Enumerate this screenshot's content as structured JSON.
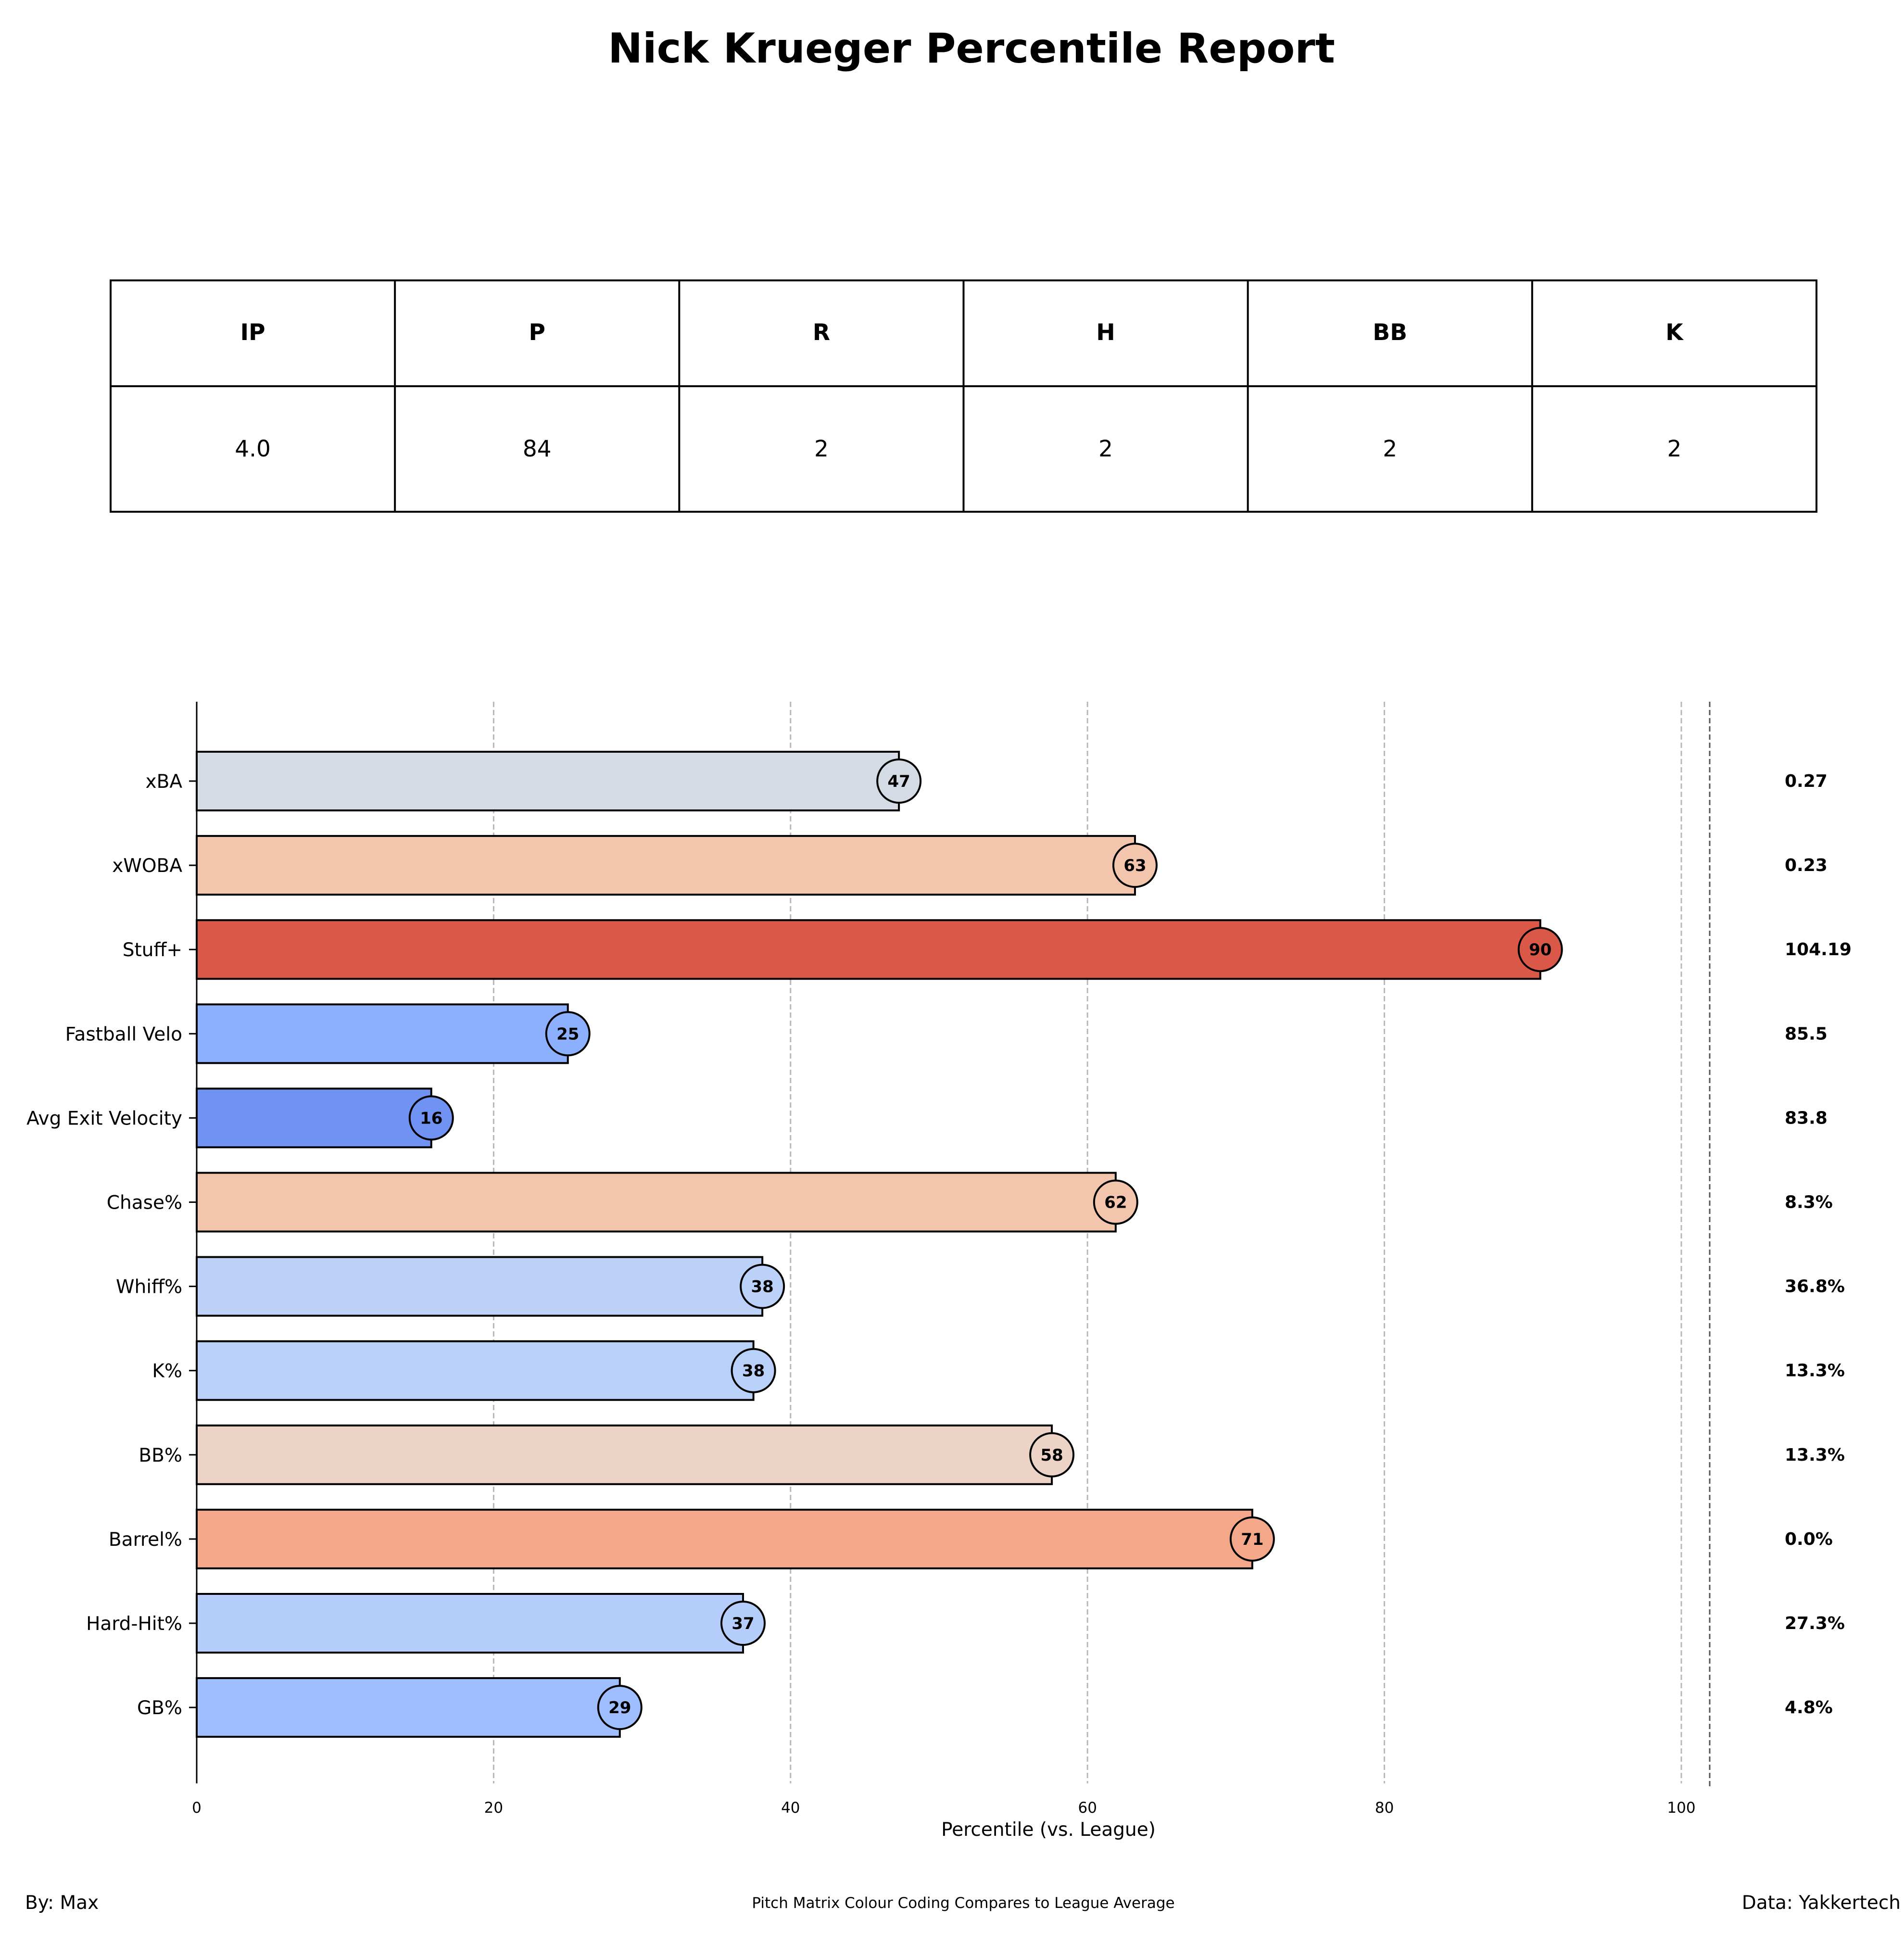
{
  "title": "Nick Krueger Percentile Report",
  "stats_table": {
    "headers": [
      "IP",
      "P",
      "R",
      "H",
      "BB",
      "K"
    ],
    "values": [
      "4.0",
      "84",
      "2",
      "2",
      "2",
      "2"
    ]
  },
  "chart_data": {
    "type": "bar",
    "orientation": "horizontal",
    "categories": [
      "xBA",
      "xWOBA",
      "Stuff+",
      "Fastball Velo",
      "Avg Exit Velocity",
      "Chase%",
      "Whiff%",
      "K%",
      "BB%",
      "Barrel%",
      "Hard-Hit%",
      "GB%"
    ],
    "values": [
      47.3,
      63.2,
      90.5,
      25.0,
      15.8,
      61.9,
      38.1,
      37.5,
      57.6,
      71.1,
      36.8,
      28.5
    ],
    "bubble_labels": [
      "47",
      "63",
      "90",
      "25",
      "16",
      "62",
      "38",
      "38",
      "58",
      "71",
      "37",
      "29"
    ],
    "stat_values": [
      "0.27",
      "0.23",
      "104.19",
      "85.5",
      "83.8",
      "8.3%",
      "36.8%",
      "13.3%",
      "13.3%",
      "0.0%",
      "27.3%",
      "4.8%"
    ],
    "colors": [
      "#d5dbe5",
      "#f4c5ad",
      "#d95847",
      "#8caffe",
      "#7092f3",
      "#f4c5ad",
      "#bbd1f8",
      "#b9d0f9",
      "#ecd3c5",
      "#f5a889",
      "#b5cdfa",
      "#9ebeff"
    ],
    "xlabel": "Percentile (vs. League)",
    "xticks": [
      0,
      20,
      40,
      60,
      80,
      100
    ],
    "xlim": [
      0,
      102
    ],
    "grid": "vertical dashed"
  },
  "footer": {
    "left": "By: Max",
    "center": "Pitch Matrix Colour Coding Compares to League Average",
    "right": "Data: Yakkertech"
  }
}
